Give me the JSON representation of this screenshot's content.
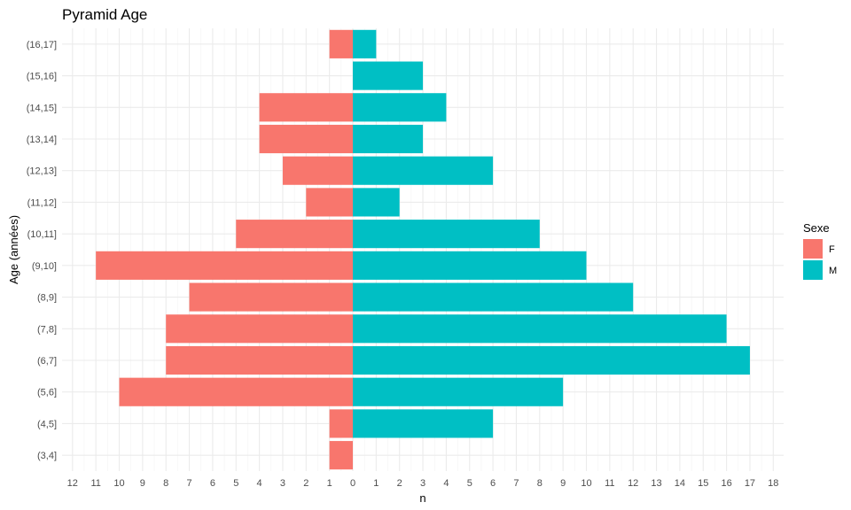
{
  "chart_data": {
    "type": "bar",
    "orientation": "horizontal-pyramid",
    "title": "Pyramid Age",
    "xlabel": "n",
    "ylabel": "Age (années)",
    "categories": [
      "(3,4]",
      "(4,5]",
      "(5,6]",
      "(6,7]",
      "(7,8]",
      "(8,9]",
      "(9,10]",
      "(10,11]",
      "(11,12]",
      "(12,13]",
      "(13,14]",
      "(14,15]",
      "(15,16]",
      "(16,17]"
    ],
    "series": [
      {
        "name": "F",
        "color": "#F8766D",
        "values": [
          1,
          1,
          10,
          8,
          8,
          7,
          11,
          5,
          2,
          3,
          4,
          4,
          0,
          1
        ]
      },
      {
        "name": "M",
        "color": "#00BFC4",
        "values": [
          0,
          6,
          9,
          17,
          16,
          12,
          10,
          8,
          2,
          6,
          3,
          4,
          3,
          1
        ]
      }
    ],
    "xlim": [
      -12,
      18
    ],
    "x_tick_labels": [
      "12",
      "11",
      "10",
      "9",
      "8",
      "7",
      "6",
      "5",
      "4",
      "3",
      "2",
      "1",
      "0",
      "1",
      "2",
      "3",
      "4",
      "5",
      "6",
      "7",
      "8",
      "9",
      "10",
      "11",
      "12",
      "13",
      "14",
      "15",
      "16",
      "17",
      "18"
    ],
    "grid": true,
    "legend": {
      "title": "Sexe",
      "placement": "right"
    }
  }
}
